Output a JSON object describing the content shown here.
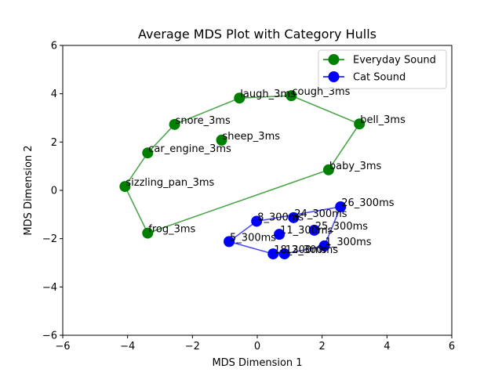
{
  "chart_data": {
    "type": "scatter",
    "title": "Average MDS Plot with Category Hulls",
    "xlabel": "MDS Dimension 1",
    "ylabel": "MDS Dimension 2",
    "xlim": [
      -6,
      6
    ],
    "ylim": [
      -6,
      6
    ],
    "xticks": [
      -6,
      -4,
      -2,
      0,
      2,
      4,
      6
    ],
    "yticks": [
      -6,
      -4,
      -2,
      0,
      2,
      4,
      6
    ],
    "grid": false,
    "legend_position": "top-right",
    "series": [
      {
        "name": "Everyday Sound",
        "color": "#008000",
        "hull_color": "#4ca64c",
        "points": [
          {
            "label": "laugh_3ms",
            "x": -0.55,
            "y": 3.82
          },
          {
            "label": "cough_3ms",
            "x": 1.05,
            "y": 3.92
          },
          {
            "label": "snore_3ms",
            "x": -2.55,
            "y": 2.73
          },
          {
            "label": "bell_3ms",
            "x": 3.15,
            "y": 2.75
          },
          {
            "label": "sheep_3ms",
            "x": -1.1,
            "y": 2.08
          },
          {
            "label": "car_engine_3ms",
            "x": -3.38,
            "y": 1.55
          },
          {
            "label": "baby_3ms",
            "x": 2.2,
            "y": 0.85
          },
          {
            "label": "sizzling_pan_3ms",
            "x": -4.08,
            "y": 0.16
          },
          {
            "label": "frog_3ms",
            "x": -3.38,
            "y": -1.77
          }
        ],
        "hull": [
          "laugh_3ms",
          "cough_3ms",
          "bell_3ms",
          "baby_3ms",
          "frog_3ms",
          "sizzling_pan_3ms",
          "car_engine_3ms",
          "snore_3ms"
        ]
      },
      {
        "name": "Cat Sound",
        "color": "#0000ff",
        "hull_color": "#4c4cff",
        "points": [
          {
            "label": "26_300ms",
            "x": 2.57,
            "y": -0.68
          },
          {
            "label": "24_300ms",
            "x": 1.12,
            "y": -1.13
          },
          {
            "label": "8_300ms",
            "x": -0.02,
            "y": -1.28
          },
          {
            "label": "25_300ms",
            "x": 1.76,
            "y": -1.65
          },
          {
            "label": "11_300ms",
            "x": 0.68,
            "y": -1.82
          },
          {
            "label": "5_300ms",
            "x": -0.87,
            "y": -2.12
          },
          {
            "label": "1_300ms",
            "x": 2.07,
            "y": -2.3
          },
          {
            "label": "18_300ms",
            "x": 0.49,
            "y": -2.63
          },
          {
            "label": "12_300ms",
            "x": 0.84,
            "y": -2.63
          }
        ],
        "hull": [
          "26_300ms",
          "1_300ms",
          "12_300ms",
          "18_300ms",
          "5_300ms",
          "8_300ms"
        ]
      }
    ]
  }
}
